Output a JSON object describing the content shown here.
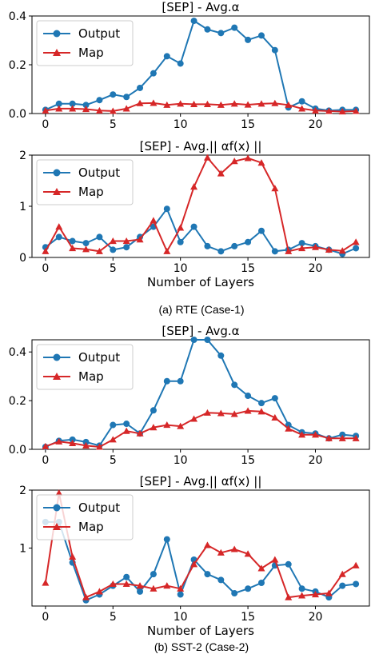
{
  "colors": {
    "output": "#1f77b4",
    "map": "#d62728",
    "legend_border": "#cccccc"
  },
  "captions": [
    "(a) RTE (Case-1)",
    "(b) SST-2 (Case-2)"
  ],
  "chart_data": [
    {
      "type": "line",
      "title": "[SEP] - Avg.α",
      "xlabel": "",
      "ylabel": "",
      "xlim": [
        -1,
        24
      ],
      "ylim": [
        0,
        0.4
      ],
      "xticks": [
        0,
        5,
        10,
        15,
        20
      ],
      "yticks": [
        0.0,
        0.2,
        0.4
      ],
      "ytick_labels": [
        "0.0",
        "0.2",
        "0.4"
      ],
      "legend": "top-left",
      "grid": false,
      "series": [
        {
          "name": "Output",
          "marker": "circle",
          "x": [
            0,
            1,
            2,
            3,
            4,
            5,
            6,
            7,
            8,
            9,
            10,
            11,
            12,
            13,
            14,
            15,
            16,
            17,
            18,
            19,
            20,
            21,
            22,
            23
          ],
          "y": [
            0.015,
            0.04,
            0.04,
            0.035,
            0.055,
            0.078,
            0.068,
            0.105,
            0.165,
            0.235,
            0.205,
            0.38,
            0.345,
            0.33,
            0.352,
            0.302,
            0.32,
            0.26,
            0.025,
            0.05,
            0.02,
            0.012,
            0.015,
            0.015
          ]
        },
        {
          "name": "Map",
          "marker": "triangle",
          "x": [
            0,
            1,
            2,
            3,
            4,
            5,
            6,
            7,
            8,
            9,
            10,
            11,
            12,
            13,
            14,
            15,
            16,
            17,
            18,
            19,
            20,
            21,
            22,
            23
          ],
          "y": [
            0.012,
            0.02,
            0.02,
            0.018,
            0.012,
            0.01,
            0.02,
            0.042,
            0.043,
            0.035,
            0.04,
            0.038,
            0.038,
            0.035,
            0.04,
            0.036,
            0.04,
            0.042,
            0.035,
            0.02,
            0.012,
            0.01,
            0.008,
            0.01
          ]
        }
      ]
    },
    {
      "type": "line",
      "title": "[SEP] - Avg.|| αf(x) ||",
      "xlabel": "Number of Layers",
      "ylabel": "",
      "xlim": [
        -1,
        24
      ],
      "ylim": [
        0,
        2
      ],
      "xticks": [
        0,
        5,
        10,
        15,
        20
      ],
      "yticks": [
        0,
        1,
        2
      ],
      "ytick_labels": [
        "0",
        "1",
        "2"
      ],
      "legend": "top-left",
      "grid": false,
      "series": [
        {
          "name": "Output",
          "marker": "circle",
          "x": [
            0,
            1,
            2,
            3,
            4,
            5,
            6,
            7,
            8,
            9,
            10,
            11,
            12,
            13,
            14,
            15,
            16,
            17,
            18,
            19,
            20,
            21,
            22,
            23
          ],
          "y": [
            0.2,
            0.4,
            0.32,
            0.28,
            0.4,
            0.15,
            0.2,
            0.4,
            0.6,
            0.95,
            0.3,
            0.6,
            0.22,
            0.12,
            0.22,
            0.3,
            0.52,
            0.12,
            0.15,
            0.28,
            0.22,
            0.15,
            0.07,
            0.18
          ]
        },
        {
          "name": "Map",
          "marker": "triangle",
          "x": [
            0,
            1,
            2,
            3,
            4,
            5,
            6,
            7,
            8,
            9,
            10,
            11,
            12,
            13,
            14,
            15,
            16,
            17,
            18,
            19,
            20,
            21,
            22,
            23
          ],
          "y": [
            0.12,
            0.6,
            0.18,
            0.16,
            0.12,
            0.32,
            0.32,
            0.35,
            0.72,
            0.12,
            0.58,
            1.38,
            1.95,
            1.64,
            1.88,
            1.94,
            1.85,
            1.35,
            0.12,
            0.18,
            0.2,
            0.15,
            0.13,
            0.3
          ]
        }
      ]
    },
    {
      "type": "line",
      "title": "[SEP] - Avg.α",
      "xlabel": "",
      "ylabel": "",
      "xlim": [
        -1,
        24
      ],
      "ylim": [
        0,
        0.45
      ],
      "xticks": [
        0,
        5,
        10,
        15,
        20
      ],
      "yticks": [
        0.0,
        0.2,
        0.4
      ],
      "ytick_labels": [
        "0.0",
        "0.2",
        "0.4"
      ],
      "legend": "top-left",
      "grid": false,
      "series": [
        {
          "name": "Output",
          "marker": "circle",
          "x": [
            0,
            1,
            2,
            3,
            4,
            5,
            6,
            7,
            8,
            9,
            10,
            11,
            12,
            13,
            14,
            15,
            16,
            17,
            18,
            19,
            20,
            21,
            22,
            23
          ],
          "y": [
            0.01,
            0.035,
            0.04,
            0.03,
            0.015,
            0.1,
            0.105,
            0.065,
            0.16,
            0.28,
            0.28,
            0.45,
            0.45,
            0.385,
            0.265,
            0.22,
            0.19,
            0.21,
            0.1,
            0.07,
            0.065,
            0.045,
            0.06,
            0.055
          ]
        },
        {
          "name": "Map",
          "marker": "triangle",
          "x": [
            0,
            1,
            2,
            3,
            4,
            5,
            6,
            7,
            8,
            9,
            10,
            11,
            12,
            13,
            14,
            15,
            16,
            17,
            18,
            19,
            20,
            21,
            22,
            23
          ],
          "y": [
            0.012,
            0.032,
            0.025,
            0.015,
            0.01,
            0.04,
            0.075,
            0.065,
            0.09,
            0.1,
            0.095,
            0.125,
            0.15,
            0.148,
            0.145,
            0.158,
            0.155,
            0.13,
            0.085,
            0.06,
            0.06,
            0.045,
            0.045,
            0.045
          ]
        }
      ]
    },
    {
      "type": "line",
      "title": "[SEP] - Avg.|| αf(x) ||",
      "xlabel": "Number of Layers",
      "ylabel": "",
      "xlim": [
        -1,
        24
      ],
      "ylim": [
        0,
        2
      ],
      "xticks": [
        0,
        5,
        10,
        15,
        20
      ],
      "yticks": [
        1,
        2
      ],
      "ytick_labels": [
        "1",
        "2"
      ],
      "legend": "top-left",
      "grid": false,
      "series": [
        {
          "name": "Output",
          "marker": "circle",
          "x": [
            0,
            1,
            2,
            3,
            4,
            5,
            6,
            7,
            8,
            9,
            10,
            11,
            12,
            13,
            14,
            15,
            16,
            17,
            18,
            19,
            20,
            21,
            22,
            23
          ],
          "y": [
            1.45,
            1.45,
            0.75,
            0.1,
            0.2,
            0.35,
            0.5,
            0.25,
            0.55,
            1.15,
            0.2,
            0.8,
            0.55,
            0.45,
            0.22,
            0.3,
            0.4,
            0.7,
            0.72,
            0.3,
            0.25,
            0.15,
            0.35,
            0.38
          ]
        },
        {
          "name": "Map",
          "marker": "triangle",
          "x": [
            0,
            1,
            2,
            3,
            4,
            5,
            6,
            7,
            8,
            9,
            10,
            11,
            12,
            13,
            14,
            15,
            16,
            17,
            18,
            19,
            20,
            21,
            22,
            23
          ],
          "y": [
            0.4,
            1.95,
            0.85,
            0.15,
            0.25,
            0.38,
            0.38,
            0.35,
            0.3,
            0.35,
            0.3,
            0.72,
            1.05,
            0.92,
            0.98,
            0.9,
            0.65,
            0.8,
            0.15,
            0.18,
            0.2,
            0.22,
            0.55,
            0.7
          ]
        }
      ]
    }
  ]
}
